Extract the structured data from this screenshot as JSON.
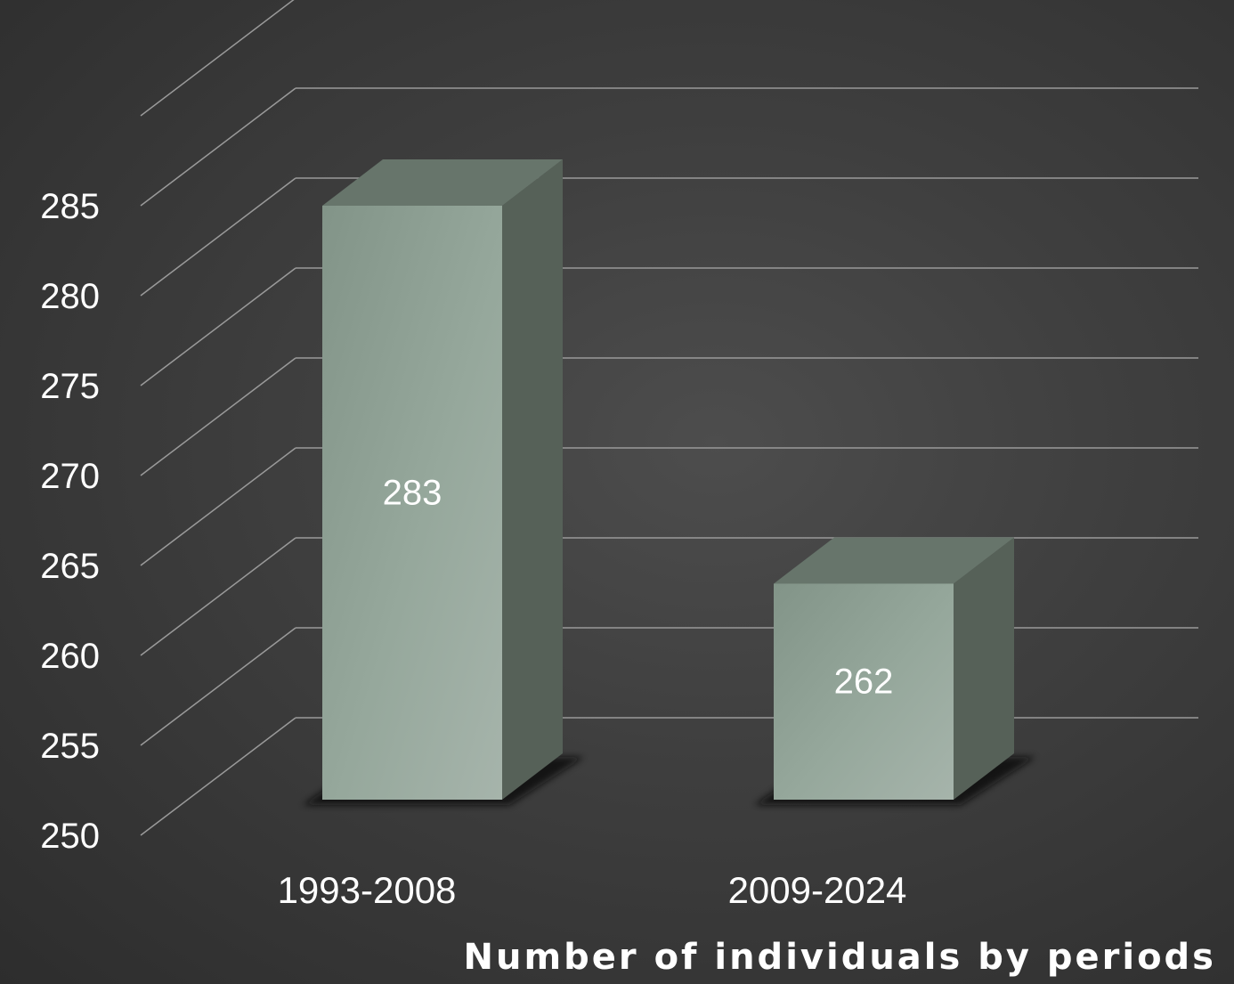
{
  "chart_data": {
    "type": "bar",
    "categories": [
      "1993-2008",
      "2009-2024"
    ],
    "values": [
      283,
      262
    ],
    "data_labels": [
      "283",
      "262"
    ],
    "title": "",
    "xlabel": "Number of individuals by periods",
    "ylabel": "",
    "ylim": [
      250,
      285
    ],
    "yticks": [
      250,
      255,
      260,
      265,
      270,
      275,
      280,
      285
    ],
    "grid": true,
    "legend": "none",
    "style": "3d-column",
    "colors": {
      "bar_front": "#93a59a",
      "bar_top": "#67756b",
      "bar_side": "#566158",
      "gridline": "#9a9a9a",
      "text": "#ffffff"
    }
  }
}
